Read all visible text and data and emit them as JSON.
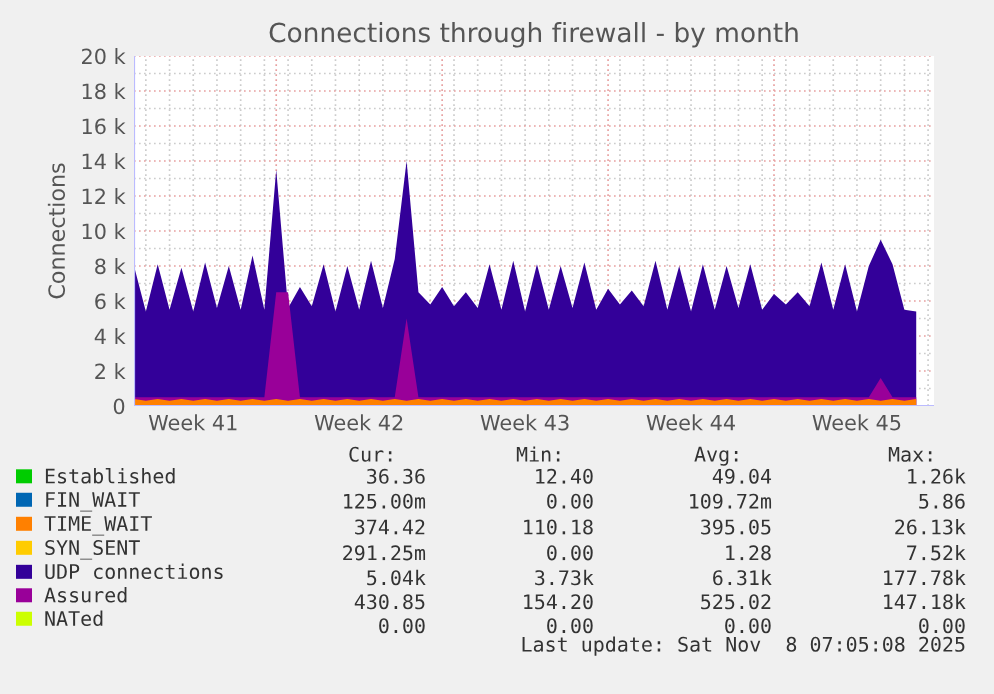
{
  "chart_data": {
    "type": "area",
    "title": "Connections through firewall - by month",
    "ylabel": "Connections",
    "xlim": [
      "2025-10-05T12:00",
      "2025-11-08T06:00"
    ],
    "xticks": [
      {
        "value": "2025-10-08",
        "label": "Week 41"
      },
      {
        "value": "2025-10-15",
        "label": "Week 42"
      },
      {
        "value": "2025-10-22",
        "label": "Week 43"
      },
      {
        "value": "2025-10-29",
        "label": "Week 44"
      },
      {
        "value": "2025-11-05",
        "label": "Week 45"
      }
    ],
    "ylim": [
      0,
      20000
    ],
    "yticks": [
      0,
      {
        "value": 2000,
        "label": "2 k"
      },
      {
        "value": 4000,
        "label": "4 k"
      },
      {
        "value": 6000,
        "label": "6 k"
      },
      {
        "value": 8000,
        "label": "8 k"
      },
      {
        "value": 10000,
        "label": "10 k"
      },
      {
        "value": 12000,
        "label": "12 k"
      },
      {
        "value": 14000,
        "label": "14 k"
      },
      {
        "value": 16000,
        "label": "16 k"
      },
      {
        "value": 18000,
        "label": "18 k"
      },
      {
        "value": 20000,
        "label": "20 k"
      }
    ],
    "grid": true,
    "legend": "bottom",
    "x": [
      "2025-10-05T12:00",
      "2025-10-06",
      "2025-10-06T12:00",
      "2025-10-07",
      "2025-10-07T12:00",
      "2025-10-08",
      "2025-10-08T12:00",
      "2025-10-09",
      "2025-10-09T12:00",
      "2025-10-10",
      "2025-10-10T12:00",
      "2025-10-11",
      "2025-10-11T12:00",
      "2025-10-12",
      "2025-10-12T12:00",
      "2025-10-13",
      "2025-10-13T12:00",
      "2025-10-14",
      "2025-10-14T12:00",
      "2025-10-15",
      "2025-10-15T12:00",
      "2025-10-16",
      "2025-10-16T12:00",
      "2025-10-17",
      "2025-10-17T12:00",
      "2025-10-18",
      "2025-10-18T12:00",
      "2025-10-19",
      "2025-10-19T12:00",
      "2025-10-20",
      "2025-10-20T12:00",
      "2025-10-21",
      "2025-10-21T12:00",
      "2025-10-22",
      "2025-10-22T12:00",
      "2025-10-23",
      "2025-10-23T12:00",
      "2025-10-24",
      "2025-10-24T12:00",
      "2025-10-25",
      "2025-10-25T12:00",
      "2025-10-26",
      "2025-10-26T12:00",
      "2025-10-27",
      "2025-10-27T12:00",
      "2025-10-28",
      "2025-10-28T12:00",
      "2025-10-29",
      "2025-10-29T12:00",
      "2025-10-30",
      "2025-10-30T12:00",
      "2025-10-31",
      "2025-10-31T12:00",
      "2025-11-01",
      "2025-11-01T12:00",
      "2025-11-02",
      "2025-11-02T12:00",
      "2025-11-03",
      "2025-11-03T12:00",
      "2025-11-04",
      "2025-11-04T12:00",
      "2025-11-05",
      "2025-11-05T12:00",
      "2025-11-06",
      "2025-11-06T12:00",
      "2025-11-07",
      "2025-11-07T12:00"
    ],
    "series": [
      {
        "name": "Established",
        "color": "#00cc00",
        "values": [
          null,
          null,
          null,
          null,
          null,
          null,
          null,
          null,
          null,
          null,
          null,
          null,
          null,
          null,
          null,
          null,
          null,
          null,
          null,
          null,
          null,
          null,
          null,
          null,
          null,
          null,
          null,
          null,
          null,
          null,
          null,
          null,
          null,
          null,
          null,
          null,
          null,
          null,
          null,
          null,
          null,
          null,
          null,
          null,
          null,
          null,
          null,
          null,
          null,
          null,
          null,
          null,
          null,
          null,
          null,
          null,
          null,
          null,
          null,
          null,
          null,
          null,
          null,
          null,
          null,
          null,
          null
        ]
      },
      {
        "name": "FIN_WAIT",
        "color": "#0066b3",
        "values": [
          null,
          null,
          null,
          null,
          null,
          null,
          null,
          null,
          null,
          null,
          null,
          null,
          null,
          null,
          null,
          null,
          null,
          null,
          null,
          null,
          null,
          null,
          null,
          null,
          null,
          null,
          null,
          null,
          null,
          null,
          null,
          null,
          null,
          null,
          null,
          null,
          null,
          null,
          null,
          null,
          null,
          null,
          null,
          null,
          null,
          null,
          null,
          null,
          null,
          null,
          null,
          null,
          null,
          null,
          null,
          null,
          null,
          null,
          null,
          null,
          null,
          null,
          null,
          null,
          null,
          null,
          null
        ]
      },
      {
        "name": "TIME_WAIT",
        "color": "#ff8000",
        "values": [
          400,
          300,
          400,
          300,
          400,
          300,
          400,
          300,
          400,
          300,
          400,
          300,
          400,
          300,
          400,
          300,
          400,
          300,
          400,
          300,
          400,
          300,
          400,
          300,
          400,
          300,
          400,
          300,
          400,
          300,
          400,
          300,
          400,
          300,
          400,
          300,
          400,
          300,
          400,
          300,
          400,
          300,
          400,
          300,
          400,
          300,
          400,
          300,
          400,
          300,
          400,
          300,
          400,
          300,
          400,
          300,
          400,
          300,
          400,
          300,
          400,
          300,
          400,
          300,
          400,
          300,
          400
        ]
      },
      {
        "name": "SYN_SENT",
        "color": "#ffcc00",
        "values": [
          null,
          null,
          null,
          null,
          null,
          null,
          null,
          null,
          null,
          null,
          null,
          null,
          null,
          null,
          null,
          null,
          null,
          null,
          null,
          null,
          null,
          null,
          null,
          null,
          null,
          null,
          null,
          null,
          null,
          null,
          null,
          null,
          null,
          null,
          null,
          null,
          null,
          null,
          null,
          null,
          null,
          null,
          null,
          null,
          null,
          null,
          null,
          null,
          null,
          null,
          null,
          null,
          null,
          null,
          null,
          null,
          null,
          null,
          null,
          null,
          null,
          null,
          null,
          null,
          null,
          null,
          null
        ]
      },
      {
        "name": "UDP connections",
        "color": "#330099",
        "values": [
          8000,
          5400,
          8100,
          5500,
          7900,
          5400,
          8200,
          5600,
          8000,
          5500,
          8600,
          5500,
          13500,
          5600,
          6800,
          5700,
          8100,
          5400,
          8000,
          5500,
          8300,
          5600,
          8400,
          14000,
          6500,
          5800,
          6800,
          5700,
          6500,
          5600,
          8100,
          5500,
          8300,
          5400,
          8100,
          5500,
          8000,
          5600,
          8200,
          5500,
          6700,
          5800,
          6600,
          5700,
          8300,
          5500,
          8000,
          5400,
          8100,
          5500,
          8000,
          5600,
          8100,
          5500,
          6400,
          5800,
          6500,
          5700,
          8200,
          5500,
          8100,
          5400,
          8000,
          9500,
          8100,
          5500,
          5400
        ]
      },
      {
        "name": "Assured",
        "color": "#990099",
        "values": [
          500,
          500,
          500,
          500,
          500,
          500,
          500,
          500,
          500,
          500,
          500,
          500,
          6500,
          6500,
          500,
          500,
          500,
          500,
          500,
          500,
          500,
          500,
          500,
          5000,
          500,
          500,
          500,
          500,
          500,
          500,
          500,
          500,
          500,
          500,
          500,
          500,
          500,
          500,
          500,
          500,
          500,
          500,
          500,
          500,
          500,
          500,
          500,
          500,
          500,
          500,
          500,
          500,
          500,
          500,
          500,
          500,
          500,
          500,
          500,
          500,
          500,
          500,
          500,
          1600,
          500,
          500,
          500
        ]
      },
      {
        "name": "NATed",
        "color": "#ccff00",
        "values": [
          null,
          null,
          null,
          null,
          null,
          null,
          null,
          null,
          null,
          null,
          null,
          null,
          null,
          null,
          null,
          null,
          null,
          null,
          null,
          null,
          null,
          null,
          null,
          null,
          null,
          null,
          null,
          null,
          null,
          null,
          null,
          null,
          null,
          null,
          null,
          null,
          null,
          null,
          null,
          null,
          null,
          null,
          null,
          null,
          null,
          null,
          null,
          null,
          null,
          null,
          null,
          null,
          null,
          null,
          null,
          null,
          null,
          null,
          null,
          null,
          null,
          null,
          null,
          null,
          null,
          null,
          null
        ]
      }
    ],
    "annotations": [
      "Cur:",
      "Min:",
      "Avg:",
      "Max:",
      "36.36",
      "12.40",
      "49.04",
      "1.26k",
      "125.00m",
      "0.00",
      "109.72m",
      "5.86",
      "374.42",
      "110.18",
      "395.05",
      "26.13k",
      "291.25m",
      "0.00",
      "1.28",
      "7.52k",
      "5.04k",
      "3.73k",
      "6.31k",
      "177.78k",
      "430.85",
      "154.20",
      "525.02",
      "147.18k",
      "0.00",
      "0.00",
      "0.00",
      "0.00",
      "Last update: Sat Nov  8 07:05:08 2025"
    ]
  }
}
